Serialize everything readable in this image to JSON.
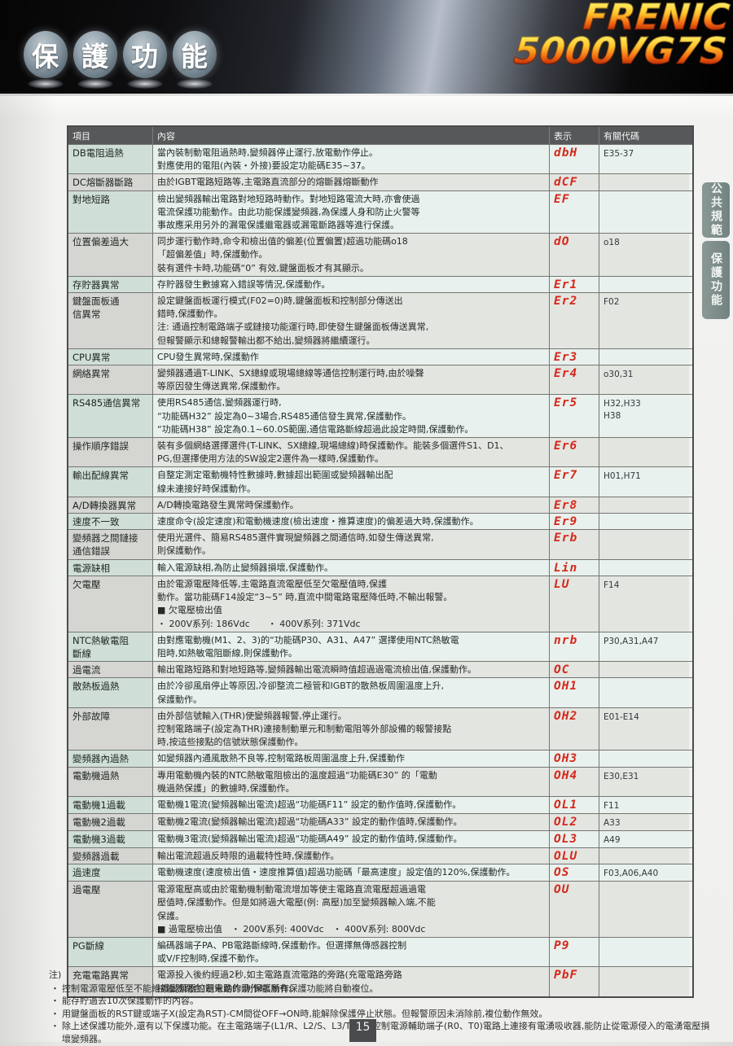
{
  "header": {
    "title_chars": [
      "保",
      "護",
      "功",
      "能"
    ],
    "brand_line1": "FRENIC",
    "brand_line2": "5000VG7S"
  },
  "side_tabs": [
    {
      "label": "公共規範"
    },
    {
      "label": "保護功能"
    }
  ],
  "colors": {
    "display_code_red": "#d5281b",
    "table_header_gray": "#57585a",
    "tab_green_gray": "#7d8c89",
    "brand_gradient_top": "#ffec62",
    "brand_gradient_bottom": "#a31806"
  },
  "table": {
    "headers": [
      "項目",
      "內容",
      "表示",
      "有關代碼"
    ],
    "rows": [
      {
        "item_lines": [
          "DB電阻過熱"
        ],
        "content_lines": [
          "當內裝制動電阻過熱時,變頻器停止運行,放電動作停止。",
          "對應使用的電阻(內裝・外接)要設定功能碼E35~37。"
        ],
        "display": "dbH",
        "code_lines": [
          "E35-37"
        ]
      },
      {
        "item_lines": [
          "DC熔斷器斷路"
        ],
        "content_lines": [
          "由於IGBT電路短路等,主電路直流部分的熔斷器熔斷動作"
        ],
        "display": "dCF",
        "code_lines": []
      },
      {
        "item_lines": [
          "對地短路"
        ],
        "content_lines": [
          "檢出變頻器輸出電路對地短路時動作。對地短路電流大時,亦會使過",
          "電流保護功能動作。由此功能保護變頻器,為保護人身和防止火警等",
          "事故應采用另外的漏電保護繼電器或漏電斷路器等進行保護。"
        ],
        "display": "EF",
        "code_lines": []
      },
      {
        "item_lines": [
          "位置偏差過大"
        ],
        "content_lines": [
          "同步運行動作時,命令和檢出值的偏差(位置偏置)超過功能碼o18",
          "「超偏差值」時,保護動作。",
          "裝有選件卡時,功能碼“0” 有效,鍵盤面板才有其顯示。"
        ],
        "display": "dO",
        "code_lines": [
          "o18"
        ]
      },
      {
        "item_lines": [
          "存貯器異常"
        ],
        "content_lines": [
          "存貯器發生數據寫入錯誤等情況,保護動作。"
        ],
        "display": "Er1",
        "code_lines": []
      },
      {
        "item_lines": [
          "鍵盤面板通",
          "信異常"
        ],
        "content_lines": [
          "設定鍵盤面板運行模式(F02=0)時,鍵盤面板和控制部分傳送出",
          "錯時,保護動作。",
          "注: 通過控制電路端子或鏈接功能運行時,即使發生鍵盤面板傳送異常,",
          "但報警顯示和總報警輸出都不給出,變頻器將繼續運行。"
        ],
        "display": "Er2",
        "code_lines": [
          "F02"
        ]
      },
      {
        "item_lines": [
          "CPU異常"
        ],
        "content_lines": [
          "CPU發生異常時,保護動作"
        ],
        "display": "Er3",
        "code_lines": []
      },
      {
        "item_lines": [
          "網絡異常"
        ],
        "content_lines": [
          "變頻器通過T-LINK、SX總線或現場總線等通信控制運行時,由於噪聲",
          "等原因發生傳送異常,保護動作。"
        ],
        "display": "Er4",
        "code_lines": [
          "o30,31"
        ]
      },
      {
        "item_lines": [
          "RS485通信異常"
        ],
        "content_lines": [
          "使用RS485通信,變頻器運行時,",
          "“功能碼H32” 設定為0~3場合,RS485通信發生異常,保護動作。",
          "“功能碼H38” 設定為0.1~60.0S範圍,通信電路斷線超過此設定時間,保護動作。"
        ],
        "display": "Er5",
        "code_lines": [
          "H32,H33",
          "H38"
        ]
      },
      {
        "item_lines": [
          "操作順序錯誤"
        ],
        "content_lines": [
          "裝有多個網絡選擇選件(T-LINK、SX總線,現場總線)時保護動作。能裝多個選件S1、D1、",
          "PG,但選擇使用方法的SW設定2選件為一樣時,保護動作。"
        ],
        "display": "Er6",
        "code_lines": []
      },
      {
        "item_lines": [
          "輸出配線異常"
        ],
        "content_lines": [
          "自整定測定電動機特性數據時,數據超出範圍或變頻器輸出配",
          "線未連接好時保護動作。"
        ],
        "display": "Er7",
        "code_lines": [
          "H01,H71"
        ]
      },
      {
        "item_lines": [
          "A/D轉換器異常"
        ],
        "content_lines": [
          "A/D轉換電路發生異常時保護動作。"
        ],
        "display": "Er8",
        "code_lines": []
      },
      {
        "item_lines": [
          "速度不一致"
        ],
        "content_lines": [
          "速度命令(設定速度)和電動機速度(檢出速度・推算速度)的偏差過大時,保護動作。"
        ],
        "display": "Er9",
        "code_lines": []
      },
      {
        "item_lines": [
          "變頻器之間鏈接",
          "通信錯誤"
        ],
        "content_lines": [
          "使用光選件、簡易RS485選件實現變頻器之間通信時,如發生傳送異常,",
          "則保護動作。"
        ],
        "display": "Erb",
        "code_lines": []
      },
      {
        "item_lines": [
          "電源缺相"
        ],
        "content_lines": [
          "輸入電源缺相,為防止變頻器損壞,保護動作。"
        ],
        "display": "Lin",
        "code_lines": []
      },
      {
        "item_lines": [
          "欠電壓"
        ],
        "content_lines": [
          "由於電源電壓降低等,主電路直流電壓低至欠電壓值時,保護",
          "動作。當功能碼F14設定“3~5” 時,直流中間電路電壓降低時,不輸出報警。",
          "■ 欠電壓檢出值",
          "・ 200V系列: 186Vdc　　・ 400V系列: 371Vdc"
        ],
        "display": "LU",
        "code_lines": [
          "F14"
        ]
      },
      {
        "item_lines": [
          "NTC熱敏電阻",
          "斷線"
        ],
        "content_lines": [
          "由對應電動機(M1、2、3)的“功能碼P30、A31、A47” 選擇使用NTC熱敏電",
          "阻時,如熱敏電阻斷線,則保護動作。"
        ],
        "display": "nrb",
        "code_lines": [
          "P30,A31,A47"
        ]
      },
      {
        "item_lines": [
          "過電流"
        ],
        "content_lines": [
          "輸出電路短路和對地短路等,變頻器輸出電流瞬時值超過過電流檢出值,保護動作。"
        ],
        "display": "OC",
        "code_lines": []
      },
      {
        "item_lines": [
          "散熱板過熱"
        ],
        "content_lines": [
          "由於冷卻風扇停止等原因,冷卻整流二極管和IGBT的散熱板周圍溫度上升,",
          "保護動作。"
        ],
        "display": "OH1",
        "code_lines": []
      },
      {
        "item_lines": [
          "外部故障"
        ],
        "content_lines": [
          "由外部信號輸入(THR)使變頻器報警,停止運行。",
          "控制電路端子(設定為THR)連接制動單元和制動電阻等外部設備的報警接點",
          "時,按這些接點的信號狀態保護動作。"
        ],
        "display": "OH2",
        "code_lines": [
          "E01-E14"
        ]
      },
      {
        "item_lines": [
          "變頻器內過熱"
        ],
        "content_lines": [
          "如變頻器內通風散熱不良等,控制電路板周圍溫度上升,保護動作"
        ],
        "display": "OH3",
        "code_lines": []
      },
      {
        "item_lines": [
          "電動機過熱"
        ],
        "content_lines": [
          "專用電動機內裝的NTC熱敏電阻檢出的溫度超過“功能碼E30” 的「電動",
          "機過熱保護」的數據時,保護動作。"
        ],
        "display": "OH4",
        "code_lines": [
          "E30,E31"
        ]
      },
      {
        "item_lines": [
          "電動機1過載"
        ],
        "content_lines": [
          "電動機1電流(變頻器輸出電流)超過“功能碼F11” 設定的動作值時,保護動作。"
        ],
        "display": "OL1",
        "code_lines": [
          "F11"
        ]
      },
      {
        "item_lines": [
          "電動機2過載"
        ],
        "content_lines": [
          "電動機2電流(變頻器輸出電流)超過“功能碼A33” 設定的動作值時,保護動作。"
        ],
        "display": "OL2",
        "code_lines": [
          "A33"
        ]
      },
      {
        "item_lines": [
          "電動機3過載"
        ],
        "content_lines": [
          "電動機3電流(變頻器輸出電流)超過“功能碼A49” 設定的動作值時,保護動作。"
        ],
        "display": "OL3",
        "code_lines": [
          "A49"
        ]
      },
      {
        "item_lines": [
          "變頻器過載"
        ],
        "content_lines": [
          "輸出電流超過反時限的過載特性時,保護動作。"
        ],
        "display": "OLU",
        "code_lines": []
      },
      {
        "item_lines": [
          "過速度"
        ],
        "content_lines": [
          "電動機速度(速度檢出值・速度推算值)超過功能碼「最高速度」設定值的120%,保護動作。"
        ],
        "display": "OS",
        "code_lines": [
          "F03,A06,A40"
        ]
      },
      {
        "item_lines": [
          "過電壓"
        ],
        "content_lines": [
          "電源電壓高或由於電動機制動電流增加等使主電路直流電壓超過過電",
          "壓值時,保護動作。但是如將過大電壓(例: 高壓)加至變頻器輸入端,不能",
          "保護。",
          "■ 過電壓檢出值　・ 200V系列: 400Vdc　・ 400V系列: 800Vdc"
        ],
        "display": "OU",
        "code_lines": []
      },
      {
        "item_lines": [
          "PG斷線"
        ],
        "content_lines": [
          "編碼器端子PA、PB電路斷線時,保護動作。但選擇無傳感器控制",
          "或V/F控制時,保護不動作。"
        ],
        "display": "P9",
        "code_lines": []
      },
      {
        "item_lines": [
          "充電電路異常"
        ],
        "content_lines": [
          "電源投入後約經過2秒,如主電路直流電路的旁路(充電電路旁路",
          "接觸器閉合)還未動作,則保護動作。"
        ],
        "display": "PbF",
        "code_lines": []
      }
    ]
  },
  "notes": {
    "title": "注)",
    "items": [
      "控制電源電壓低至不能維護變頻器控制電路的動作時,所有保護功能將自動複位。",
      "能存貯過去10次保護動作的內容。",
      "用鍵盤面板的RST鍵或端子X(設定為RST)-CM間從OFF→ON時,能解除保護停止狀態。但報警原因未消除前,複位動作無效。",
      "除上述保護功能外,還有以下保護功能。在主電路端子(L1/R、L2/S、L3/T)以及控制電源輔助端子(R0、T0)電路上連接有電湧吸收器,能防止從電源侵入的電湧電壓損壞變頻器。"
    ]
  },
  "page_number": "15"
}
